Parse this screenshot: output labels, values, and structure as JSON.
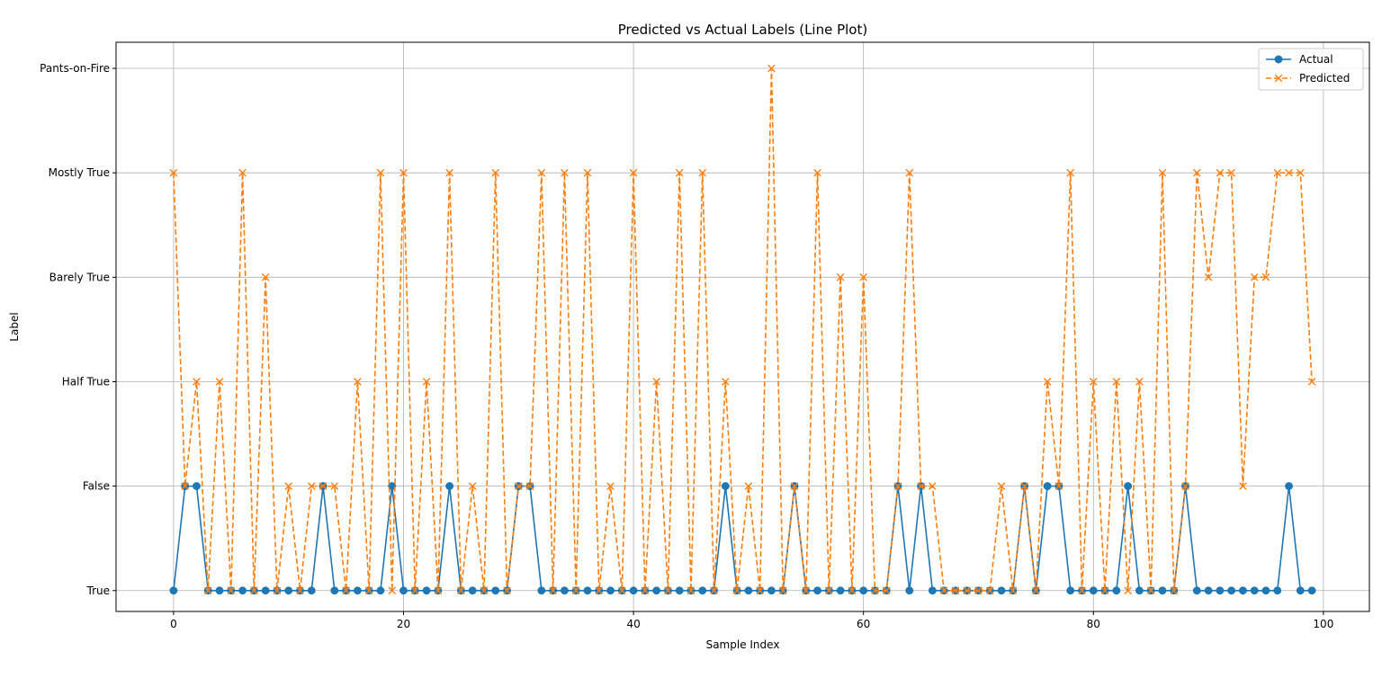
{
  "chart_data": {
    "type": "line",
    "title": "Predicted vs Actual Labels (Line Plot)",
    "xlabel": "Sample Index",
    "ylabel": "Label",
    "xlim": [
      -5,
      104
    ],
    "ylim": [
      -0.2,
      5.25
    ],
    "x_ticks": [
      0,
      20,
      40,
      60,
      80,
      100
    ],
    "y_tick_labels": [
      "True",
      "False",
      "Half True",
      "Barely True",
      "Mostly True",
      "Pants-on-Fire"
    ],
    "grid": true,
    "legend_position": "top-right",
    "colors": {
      "actual": "#1f77b4",
      "predicted": "#ff7f0e"
    },
    "series": [
      {
        "name": "Actual",
        "marker": "circle",
        "linestyle": "solid",
        "values": [
          0,
          1,
          1,
          0,
          0,
          0,
          0,
          0,
          0,
          0,
          0,
          0,
          0,
          1,
          0,
          0,
          0,
          0,
          0,
          1,
          0,
          0,
          0,
          0,
          1,
          0,
          0,
          0,
          0,
          0,
          1,
          1,
          0,
          0,
          0,
          0,
          0,
          0,
          0,
          0,
          0,
          0,
          0,
          0,
          0,
          0,
          0,
          0,
          1,
          0,
          0,
          0,
          0,
          0,
          1,
          0,
          0,
          0,
          0,
          0,
          0,
          0,
          0,
          1,
          0,
          1,
          0,
          0,
          0,
          0,
          0,
          0,
          0,
          0,
          1,
          0,
          1,
          1,
          0,
          0,
          0,
          0,
          0,
          1,
          0,
          0,
          0,
          0,
          1,
          0,
          0,
          0,
          0,
          0,
          0,
          0,
          0,
          1,
          0,
          0
        ]
      },
      {
        "name": "Predicted",
        "marker": "x",
        "linestyle": "dashed",
        "values": [
          4,
          1,
          2,
          0,
          2,
          0,
          4,
          0,
          3,
          0,
          1,
          0,
          1,
          1,
          1,
          0,
          2,
          0,
          4,
          0,
          4,
          0,
          2,
          0,
          4,
          0,
          1,
          0,
          4,
          0,
          1,
          1,
          4,
          0,
          4,
          0,
          4,
          0,
          1,
          0,
          4,
          0,
          2,
          0,
          4,
          0,
          4,
          0,
          2,
          0,
          1,
          0,
          5,
          0,
          1,
          0,
          4,
          0,
          3,
          0,
          3,
          0,
          0,
          1,
          4,
          1,
          1,
          0,
          0,
          0,
          0,
          0,
          1,
          0,
          1,
          0,
          2,
          1,
          4,
          0,
          2,
          0,
          2,
          0,
          2,
          0,
          4,
          0,
          1,
          4,
          3,
          4,
          4,
          1,
          3,
          3,
          4,
          4,
          4,
          2
        ]
      }
    ]
  }
}
